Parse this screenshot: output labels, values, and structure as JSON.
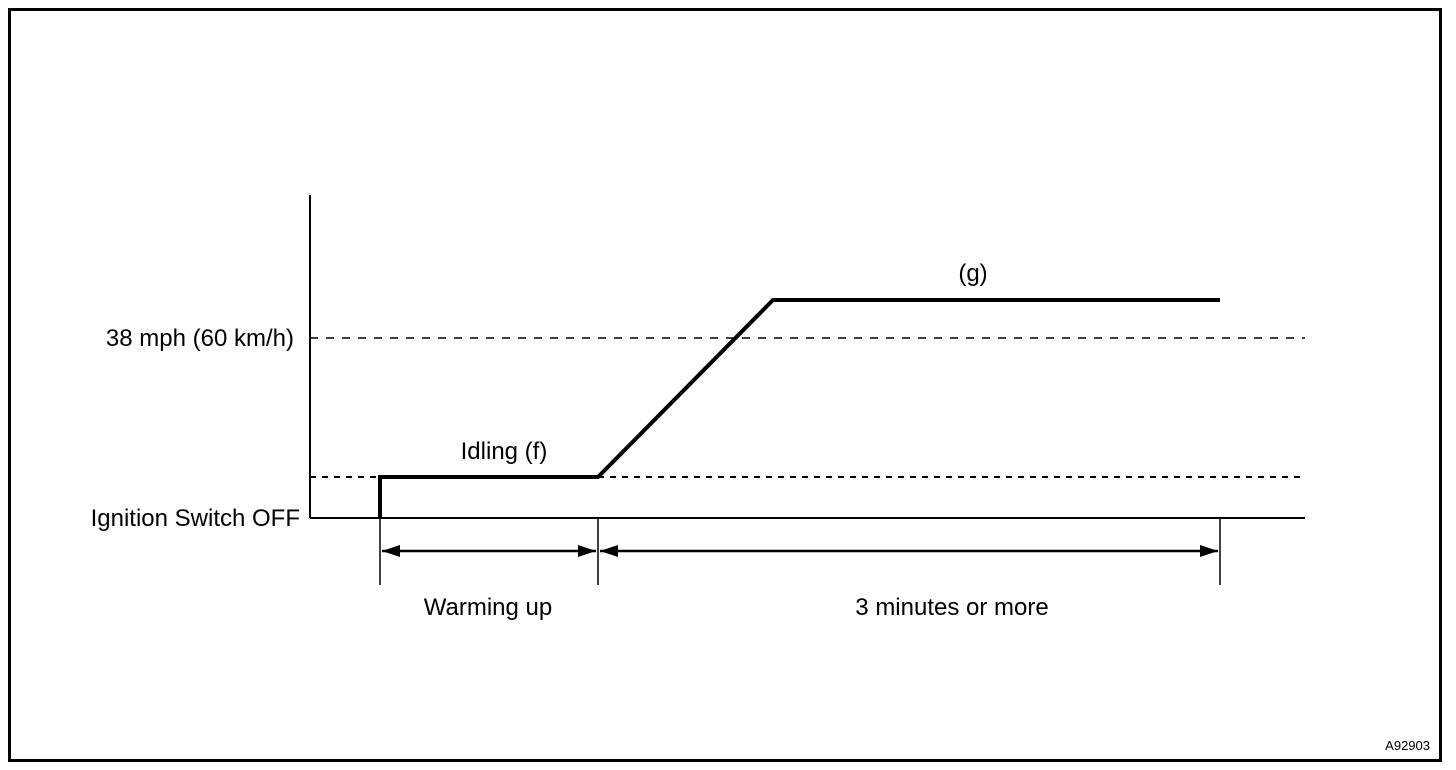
{
  "labels": {
    "speed_level": "38 mph (60 km/h)",
    "ignition_off": "Ignition Switch OFF",
    "idling": "Idling (f)",
    "cruise": "(g)",
    "warming_up": "Warming up",
    "duration": "3 minutes or more",
    "figure_code": "A92903"
  },
  "colors": {
    "line": "#000000",
    "background": "#ffffff"
  }
}
